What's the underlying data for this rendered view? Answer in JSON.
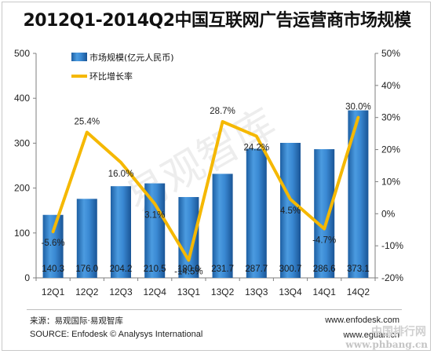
{
  "title": "2012Q1-2014Q2中国互联网广告运营商市场规模",
  "chart_data": {
    "type": "bar",
    "categories": [
      "12Q1",
      "12Q2",
      "12Q3",
      "12Q4",
      "13Q1",
      "13Q2",
      "13Q3",
      "13Q4",
      "14Q1",
      "14Q2"
    ],
    "series": [
      {
        "name": "市场规模(亿元人民币)",
        "type": "bar",
        "axis": "left",
        "values": [
          140.3,
          176.0,
          204.2,
          210.5,
          180.0,
          231.7,
          287.7,
          300.7,
          286.6,
          373.1
        ],
        "labels": [
          "140.3",
          "176.0",
          "204.2",
          "210.5",
          "180.0",
          "231.7",
          "287.7",
          "300.7",
          "286.6",
          "373.1"
        ],
        "color": "#2b7bc4"
      },
      {
        "name": "环比增长率",
        "type": "line",
        "axis": "right",
        "values": [
          -5.6,
          25.4,
          16.0,
          3.1,
          -14.5,
          28.7,
          24.2,
          4.5,
          -4.7,
          30.0
        ],
        "labels": [
          "-5.6%",
          "25.4%",
          "16.0%",
          "3.1%",
          "-14.5%",
          "28.7%",
          "24.2%",
          "4.5%",
          "-4.7%",
          "30.0%"
        ],
        "color": "#f5b800"
      }
    ],
    "ylim_left": [
      0,
      500
    ],
    "yticks_left": [
      "0",
      "100",
      "200",
      "300",
      "400",
      "500"
    ],
    "ylim_right": [
      -20,
      50
    ],
    "yticks_right": [
      "-20%",
      "-10%",
      "0%",
      "10%",
      "20%",
      "30%",
      "40%",
      "50%"
    ],
    "legend": "top-left",
    "grid": false
  },
  "watermark": "易观智库",
  "footer": {
    "source_cn": "来源：易观国际·易观智库",
    "source_en": "SOURCE: Enfodesk © Analysys International",
    "site1": "www.enfodesk.com",
    "site2": "www.eguan.cn"
  },
  "corner_watermark": {
    "line1": "中国排行网",
    "line2": "www.phbang.cn"
  }
}
